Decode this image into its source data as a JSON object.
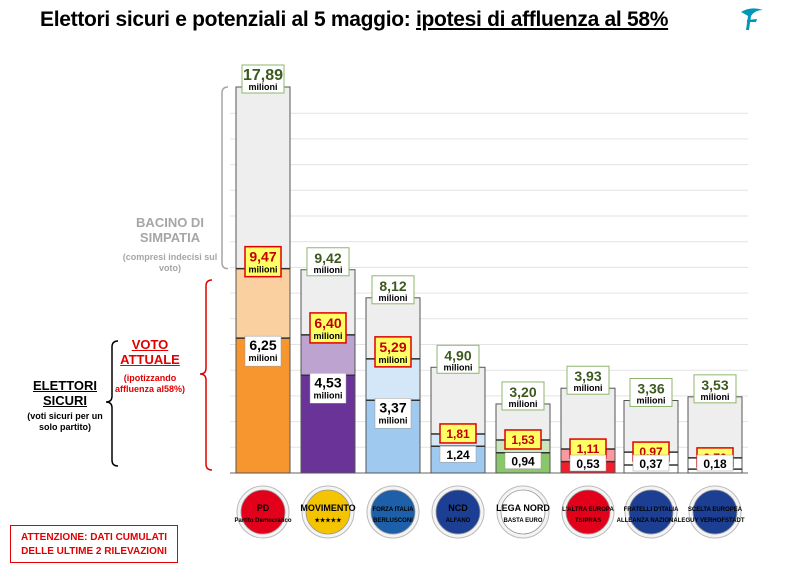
{
  "header": {
    "title_main": "Elettori sicuri e potenziali al 5 maggio: ",
    "title_emph": "ipotesi di affluenza al 58%"
  },
  "labels": {
    "bacino": "BACINO DI SIMPATIA",
    "bacino_note": "(compresi indecisi sul voto)",
    "voto": "VOTO ATTUALE",
    "voto_note": "(ipotizzando affluenza al58%)",
    "elettori": "ELETTORI SICURI",
    "elettori_note": "(voti sicuri per un solo partito)",
    "unit": "milioni",
    "warning": "ATTENZIONE: DATI CUMULATI DELLE ULTIME 2 RILEVAZIONI"
  },
  "colors": {
    "pd": "#f7962f",
    "m5s": "#6a3397",
    "fi": "#9fc9ef",
    "ncd": "#9fc9ef",
    "lega": "#8ac76a",
    "tsipras": "#f01e2a",
    "fdi": "#ffffff",
    "sc": "#ffffff",
    "bacino_bg": "#eeeeee",
    "total_label": "#3c5a1e",
    "red": "#e00000",
    "yellow": "#ffff66"
  },
  "chart_data": {
    "type": "bar",
    "ylim": [
      0,
      18.5
    ],
    "categories": [
      "PD",
      "MoVimento 5 Stelle",
      "Forza Italia",
      "NCD Alfano",
      "Lega Nord",
      "L'Altra Europa con Tsipras",
      "Fratelli d'Italia",
      "Scelta Europea"
    ],
    "series": [
      {
        "name": "BACINO DI SIMPATIA",
        "values": [
          17.89,
          9.42,
          8.12,
          4.9,
          3.2,
          3.93,
          3.36,
          3.53
        ]
      },
      {
        "name": "VOTO ATTUALE",
        "values": [
          9.47,
          6.4,
          5.29,
          1.81,
          1.53,
          1.11,
          0.97,
          0.7
        ]
      },
      {
        "name": "ELETTORI SICURI",
        "values": [
          6.25,
          4.53,
          3.37,
          1.24,
          0.94,
          0.53,
          0.37,
          0.18
        ]
      }
    ],
    "value_labels": {
      "totals": [
        "17,89",
        "9,42",
        "8,12",
        "4,90",
        "3,20",
        "3,93",
        "3,36",
        "3,53"
      ],
      "voto": [
        "9,47",
        "6,40",
        "5,29",
        "1,81",
        "1,53",
        "1,11",
        "0,97",
        "0,70"
      ],
      "sicuri": [
        "6,25",
        "4,53",
        "3,37",
        "1,24",
        "0,94",
        "0,53",
        "0,37",
        "0,18"
      ]
    },
    "logos": [
      {
        "text": "PD",
        "sub": "Partito Democratico",
        "color": "#e2001a",
        "icon": "pd-logo-icon"
      },
      {
        "text": "MOVIMENTO",
        "sub": "★★★★★",
        "color": "#f5c400",
        "icon": "m5s-logo-icon"
      },
      {
        "text": "FORZA ITALIA",
        "sub": "BERLUSCONI",
        "color": "#1d5fa8",
        "icon": "fi-logo-icon"
      },
      {
        "text": "NCD",
        "sub": "ALFANO",
        "color": "#1c3f94",
        "icon": "ncd-logo-icon"
      },
      {
        "text": "LEGA NORD",
        "sub": "BASTA EURO",
        "color": "#ffffff",
        "icon": "lega-logo-icon"
      },
      {
        "text": "L'ALTRA EUROPA",
        "sub": "TSIPRAS",
        "color": "#e2001a",
        "icon": "tsipras-logo-icon"
      },
      {
        "text": "FRATELLI D'ITALIA",
        "sub": "ALLEANZA NAZIONALE",
        "color": "#1c3f94",
        "icon": "fdi-logo-icon"
      },
      {
        "text": "SCELTA EUROPEA",
        "sub": "GUY VERHOFSTADT",
        "color": "#1c3f94",
        "icon": "sc-logo-icon"
      }
    ]
  }
}
